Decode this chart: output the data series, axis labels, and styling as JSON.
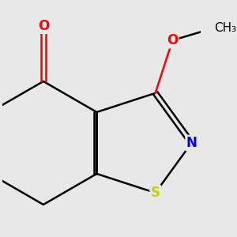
{
  "background_color": "#e8e8e8",
  "atom_colors": {
    "O": "#ff0000",
    "N": "#0000ff",
    "S": "#cccc00",
    "C": "#000000"
  },
  "bond_width": 1.8,
  "font_size_atoms": 12,
  "font_size_methyl": 11,
  "figsize": [
    3.0,
    3.0
  ],
  "dpi": 100
}
